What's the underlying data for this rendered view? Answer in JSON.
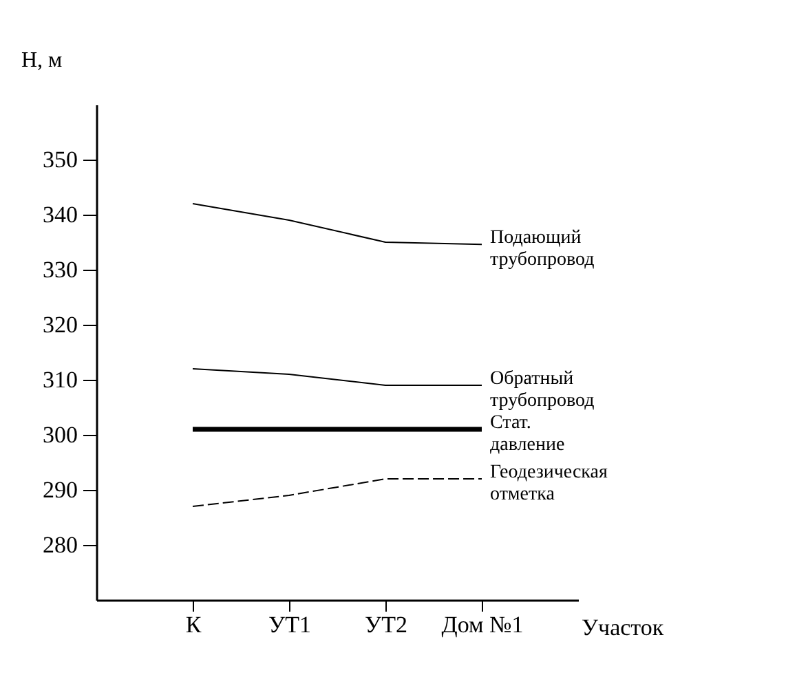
{
  "chart_data": {
    "type": "line",
    "xlabel": "Участок",
    "ylabel": "Н, м",
    "categories": [
      "К",
      "УТ1",
      "УТ2",
      "Дом №1"
    ],
    "series": [
      {
        "name": "Подающий трубопровод",
        "color": "#000000",
        "line_style": "solid",
        "values": [
          342,
          339,
          335,
          334.6
        ]
      },
      {
        "name": "Обратный трубопровод",
        "color": "#000000",
        "line_style": "solid",
        "values": [
          312,
          311,
          309,
          309
        ]
      },
      {
        "name": "Стат. давление",
        "color": "#000000",
        "line_style": "solid",
        "values": [
          301,
          301,
          301,
          301
        ]
      },
      {
        "name": "Геодезическая отметка",
        "color": "#000000",
        "line_style": "dashed",
        "values": [
          287,
          289,
          292,
          292
        ]
      }
    ],
    "ylim": [
      270,
      360
    ],
    "yticks": [
      280,
      290,
      300,
      310,
      320,
      330,
      340,
      350
    ],
    "grid": false,
    "marker": "none"
  }
}
